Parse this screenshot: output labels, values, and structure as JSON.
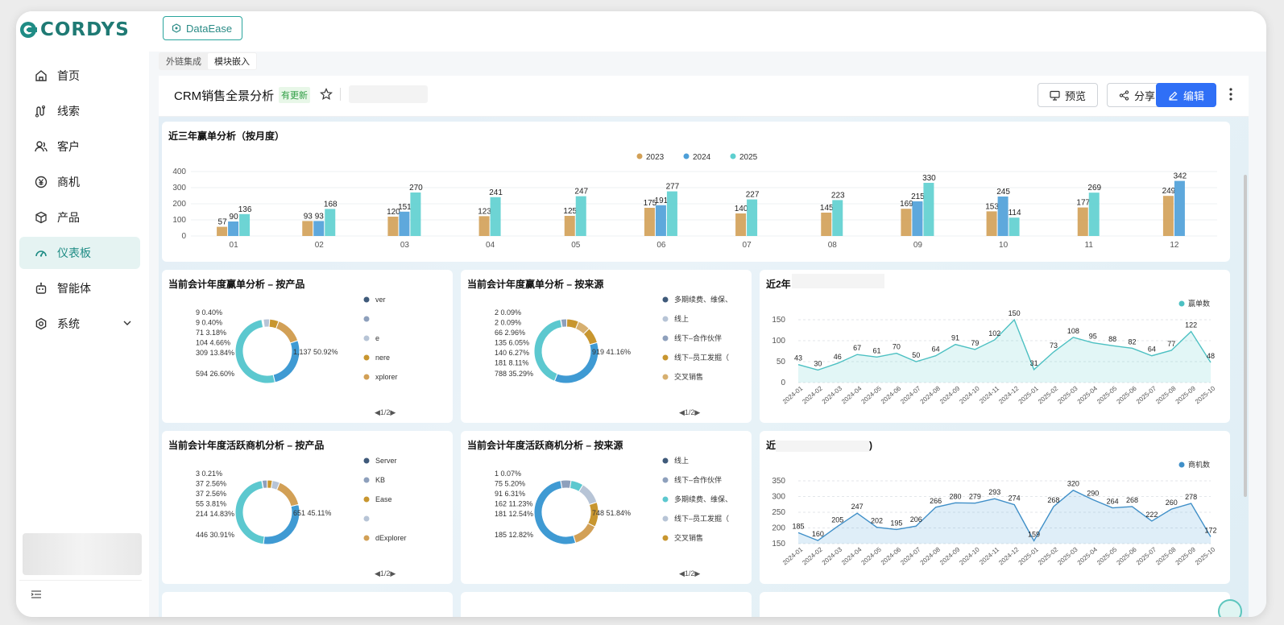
{
  "app": {
    "logo_text": "CORDYS"
  },
  "sidebar": {
    "items": [
      {
        "label": "首页",
        "icon": "home-icon"
      },
      {
        "label": "线索",
        "icon": "leads-icon"
      },
      {
        "label": "客户",
        "icon": "customer-icon"
      },
      {
        "label": "商机",
        "icon": "opportunity-icon"
      },
      {
        "label": "产品",
        "icon": "product-icon"
      },
      {
        "label": "仪表板",
        "icon": "dashboard-icon",
        "active": true
      },
      {
        "label": "智能体",
        "icon": "robot-icon"
      },
      {
        "label": "系统",
        "icon": "settings-icon"
      }
    ]
  },
  "top": {
    "tool_label": "DataEase"
  },
  "subtabs": [
    "外链集成",
    "模块嵌入"
  ],
  "dashboard": {
    "title": "CRM销售全景分析",
    "badge": "有更新",
    "buttons": {
      "preview": "预览",
      "share": "分享",
      "edit": "编辑"
    }
  },
  "colors": {
    "gold": "#d2a056",
    "blue": "#4d9fd8",
    "teal": "#5dcfcf",
    "accent": "#2f6ff6",
    "brand": "#1f8c85"
  },
  "charts": [
    {
      "title": "近三年赢单分析（按月度）",
      "chart_data": {
        "type": "bar",
        "categories": [
          "01",
          "02",
          "03",
          "04",
          "05",
          "06",
          "07",
          "08",
          "09",
          "10",
          "11",
          "12"
        ],
        "series": [
          {
            "name": "2023",
            "values": [
              57,
              93,
              120,
              123,
              125,
              175,
              140,
              145,
              169,
              153,
              177,
              249
            ]
          },
          {
            "name": "2024",
            "values": [
              90,
              93,
              151,
              null,
              null,
              191,
              null,
              null,
              215,
              245,
              null,
              342
            ]
          },
          {
            "name": "2025",
            "values": [
              136,
              168,
              270,
              241,
              247,
              277,
              227,
              223,
              330,
              114,
              269,
              null
            ]
          }
        ],
        "ylim": [
          0,
          400
        ],
        "yticks": [
          0,
          100,
          200,
          300,
          400
        ],
        "legend": "top-center"
      }
    },
    {
      "title": "当前会计年度赢单分析 – 按产品",
      "chart_data": {
        "type": "pie",
        "labels": [
          "9 0.40%",
          "9 0.40%",
          "71 3.18%",
          "104 4.66%",
          "309 13.84%",
          "594 26.60%",
          "1,137 50.92%"
        ],
        "values": [
          9,
          9,
          71,
          104,
          309,
          594,
          1137
        ],
        "legend": [
          "ver",
          "",
          "e",
          "nere",
          "xplorer"
        ]
      },
      "pager": "◀1/2▶"
    },
    {
      "title": "当前会计年度赢单分析 – 按来源",
      "chart_data": {
        "type": "pie",
        "labels": [
          "2 0.09%",
          "2 0.09%",
          "66 2.96%",
          "135 6.05%",
          "140 6.27%",
          "181 8.11%",
          "788 35.29%",
          "919 41.16%"
        ],
        "values": [
          2,
          2,
          66,
          135,
          140,
          181,
          788,
          919
        ],
        "legend": [
          "多期续费、维保、",
          "线上",
          "线下–合作伙伴",
          "线下–员工发掘（",
          "交叉销售"
        ]
      },
      "pager": "◀1/2▶"
    },
    {
      "title": "近2年",
      "chart_data": {
        "type": "area",
        "series": [
          {
            "name": "赢单数",
            "values": [
              43,
              30,
              46,
              67,
              61,
              70,
              50,
              64,
              91,
              79,
              102,
              150,
              31,
              73,
              108,
              95,
              88,
              82,
              64,
              77,
              122,
              48
            ]
          }
        ],
        "x": [
          "2024-01",
          "2024-02",
          "2024-03",
          "2024-04",
          "2024-05",
          "2024-06",
          "2024-07",
          "2024-08",
          "2024-09",
          "2024-10",
          "2024-11",
          "2024-12",
          "2025-01",
          "2025-02",
          "2025-03",
          "2025-04",
          "2025-05",
          "2025-06",
          "2025-07",
          "2025-08",
          "2025-09",
          "2025-10"
        ],
        "ylim": [
          0,
          150
        ],
        "yticks": [
          0,
          50,
          100,
          150
        ],
        "legend": "top-right"
      }
    },
    {
      "title": "当前会计年度活跃商机分析 – 按产品",
      "chart_data": {
        "type": "pie",
        "labels": [
          "3 0.21%",
          "37 2.56%",
          "37 2.56%",
          "55 3.81%",
          "214 14.83%",
          "446 30.91%",
          "651 45.11%"
        ],
        "values": [
          3,
          37,
          37,
          55,
          214,
          446,
          651
        ],
        "legend": [
          "Server",
          "KB",
          "Ease",
          "",
          "dExplorer"
        ]
      },
      "pager": "◀1/2▶"
    },
    {
      "title": "当前会计年度活跃商机分析 – 按来源",
      "chart_data": {
        "type": "pie",
        "labels": [
          "1 0.07%",
          "75 5.20%",
          "91 6.31%",
          "162 11.23%",
          "181 12.54%",
          "185 12.82%",
          "748 51.84%"
        ],
        "values": [
          1,
          75,
          91,
          162,
          181,
          185,
          748
        ],
        "legend": [
          "线上",
          "线下–合作伙伴",
          "多期续费、维保、",
          "线下–员工发掘（",
          "交叉销售"
        ]
      },
      "pager": "◀1/2▶"
    },
    {
      "title": "近",
      "title_tail": ")",
      "chart_data": {
        "type": "area",
        "series": [
          {
            "name": "商机数",
            "values": [
              185,
              160,
              205,
              247,
              202,
              195,
              206,
              266,
              280,
              279,
              293,
              274,
              159,
              268,
              320,
              290,
              264,
              268,
              222,
              260,
              278,
              172
            ]
          }
        ],
        "x": [
          "2024-01",
          "2024-02",
          "2024-03",
          "2024-04",
          "2024-05",
          "2024-06",
          "2024-07",
          "2024-08",
          "2024-09",
          "2024-10",
          "2024-11",
          "2024-12",
          "2025-01",
          "2025-02",
          "2025-03",
          "2025-04",
          "2025-05",
          "2025-06",
          "2025-07",
          "2025-08",
          "2025-09",
          "2025-10"
        ],
        "ylim": [
          150,
          350
        ],
        "yticks": [
          150,
          200,
          250,
          300,
          350
        ],
        "legend": "top-right"
      }
    }
  ]
}
